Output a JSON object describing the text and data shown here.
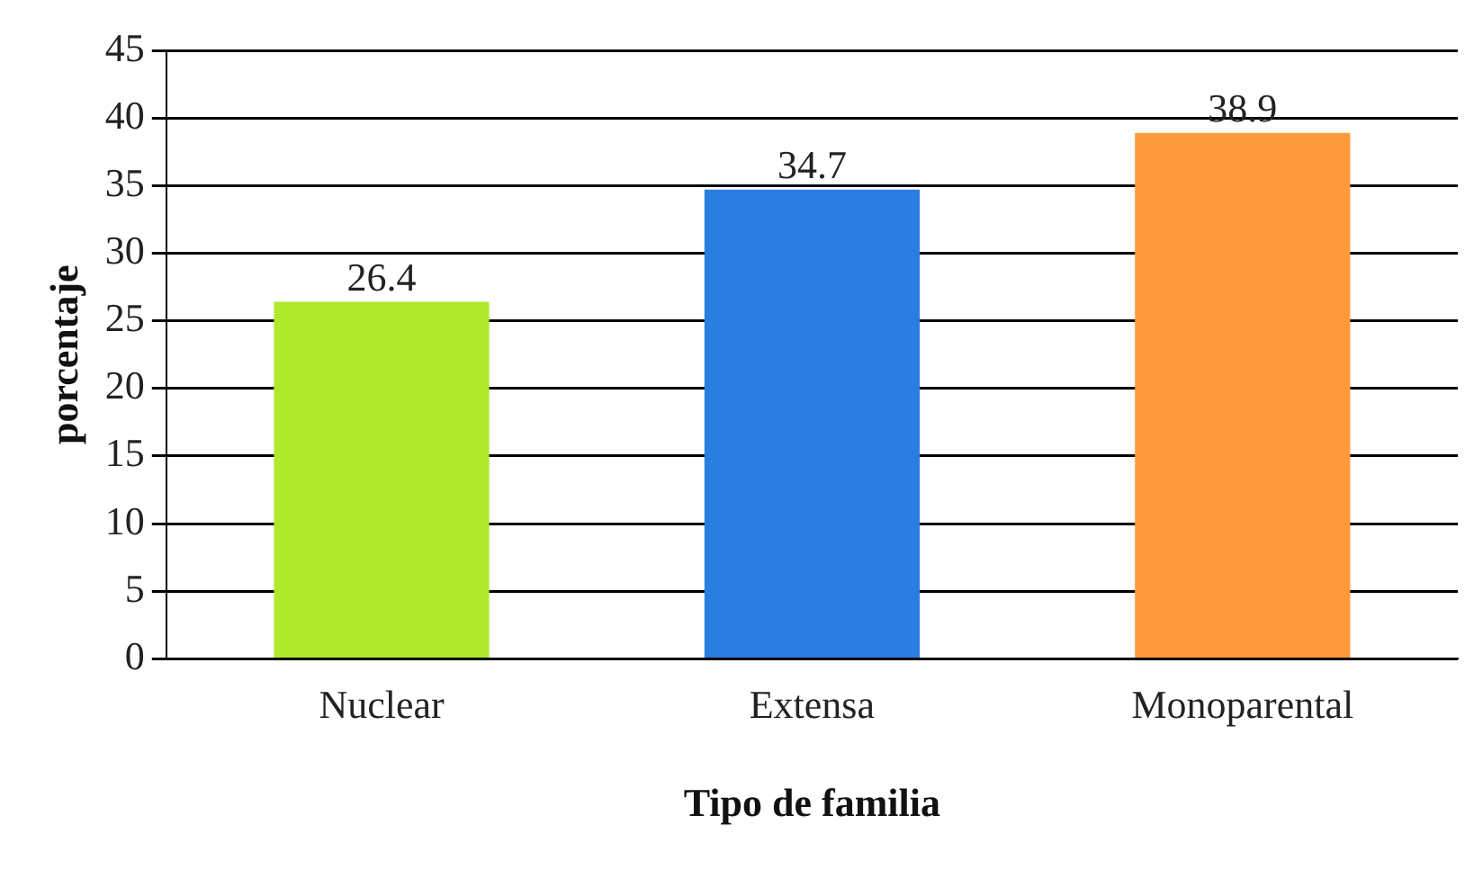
{
  "chart_data": {
    "type": "bar",
    "xlabel": "Tipo de familia",
    "ylabel": "porcentaje",
    "categories": [
      "Nuclear",
      "Extensa",
      "Monoparental"
    ],
    "values": [
      26.4,
      34.7,
      38.9
    ],
    "colors": [
      "#aee92b",
      "#2a7de1",
      "#ff9a3c"
    ],
    "ylim": [
      0,
      45
    ],
    "yticks": [
      0,
      5,
      10,
      15,
      20,
      25,
      30,
      35,
      40,
      45
    ],
    "grid": "y",
    "data_labels": true,
    "legend": false
  }
}
